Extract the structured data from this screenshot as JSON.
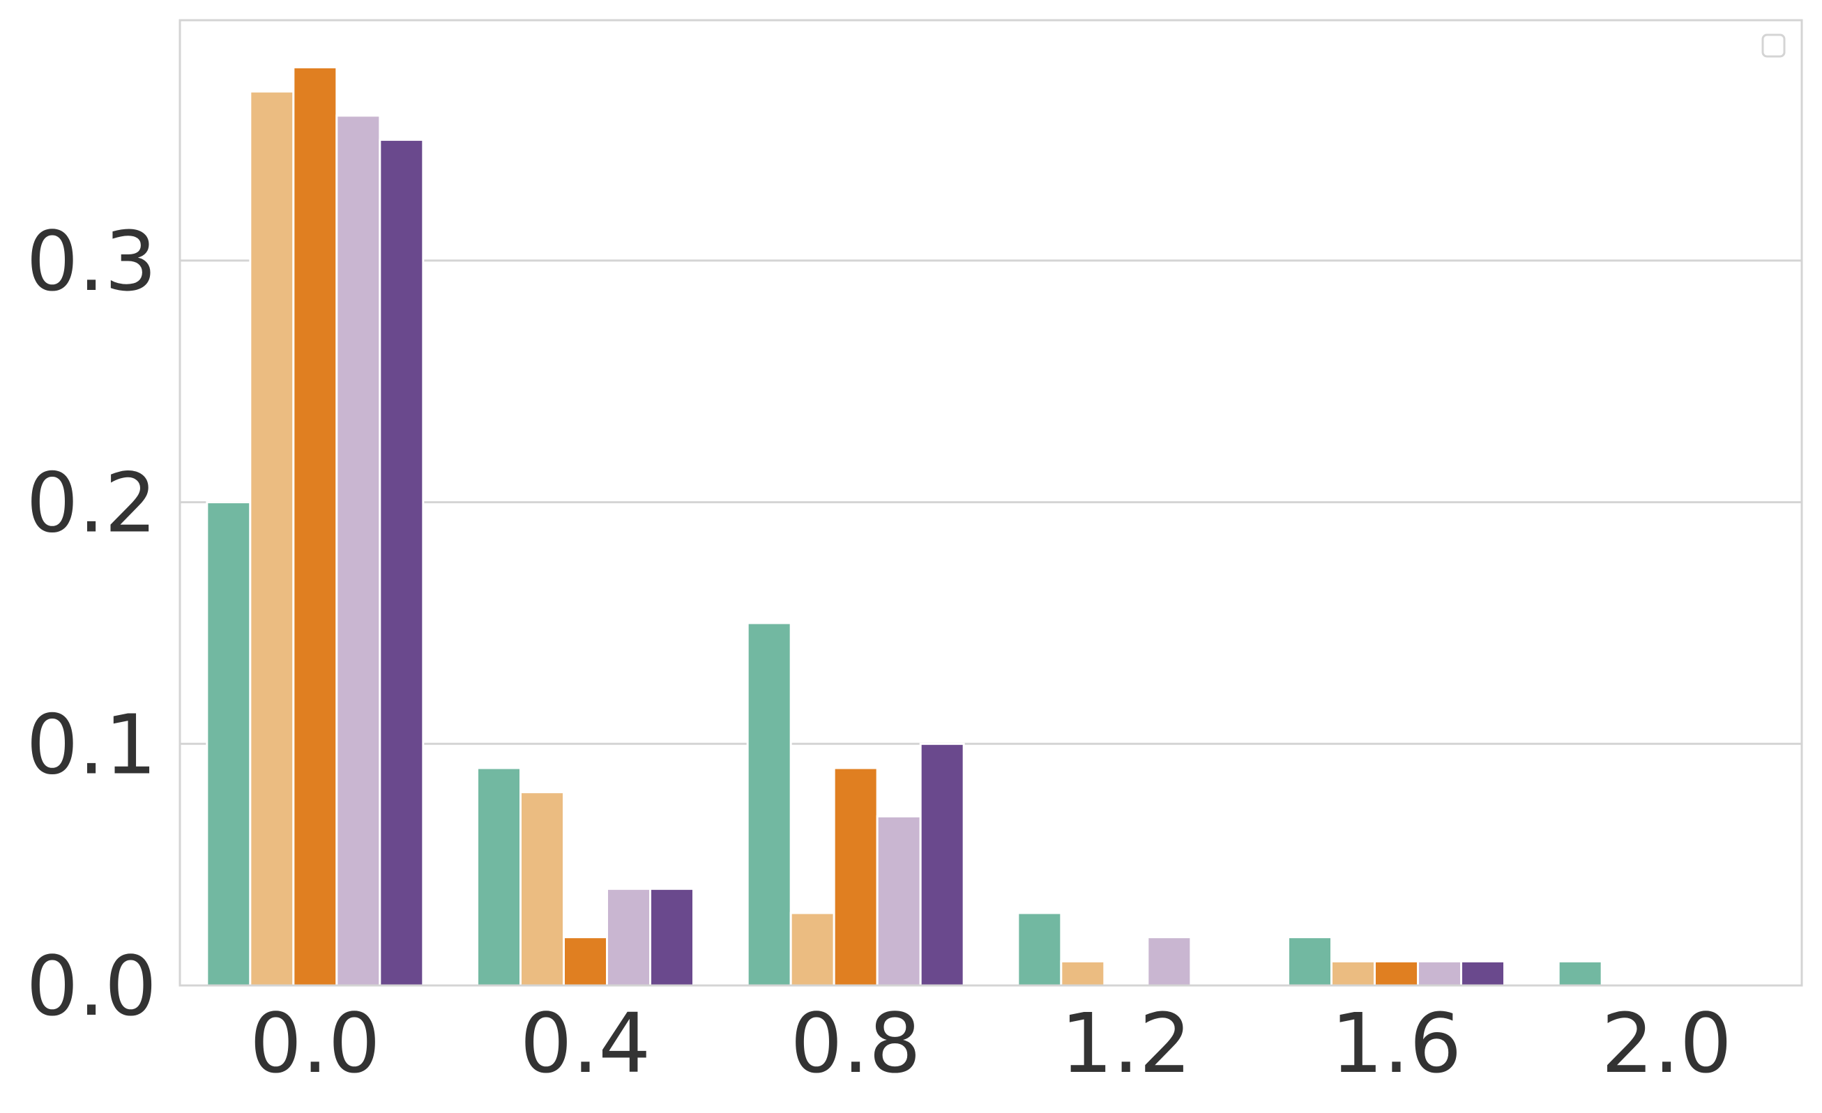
{
  "chart_data": {
    "type": "bar",
    "title": "",
    "xlabel": "",
    "ylabel": "",
    "categories": [
      "0.0",
      "0.4",
      "0.8",
      "1.2",
      "1.6",
      "2.0"
    ],
    "series": [
      {
        "color": "#72b8a1",
        "values": [
          0.2,
          0.09,
          0.15,
          0.03,
          0.02,
          0.01
        ]
      },
      {
        "color": "#ebbc81",
        "values": [
          0.37,
          0.08,
          0.03,
          0.01,
          0.01,
          0.0
        ]
      },
      {
        "color": "#e07f21",
        "values": [
          0.38,
          0.02,
          0.09,
          0.0,
          0.01,
          0.0
        ]
      },
      {
        "color": "#c9b6d1",
        "values": [
          0.36,
          0.04,
          0.07,
          0.02,
          0.01,
          0.0
        ]
      },
      {
        "color": "#6a498d",
        "values": [
          0.35,
          0.04,
          0.1,
          0.0,
          0.01,
          0.0
        ]
      }
    ],
    "y_ticks": [
      "0.0",
      "0.1",
      "0.2",
      "0.3"
    ],
    "y_tick_values": [
      0.0,
      0.1,
      0.2,
      0.3
    ],
    "ylim": [
      0,
      0.4
    ],
    "grid": "horizontal",
    "legend": {
      "placement": "top-right",
      "entries": []
    }
  }
}
